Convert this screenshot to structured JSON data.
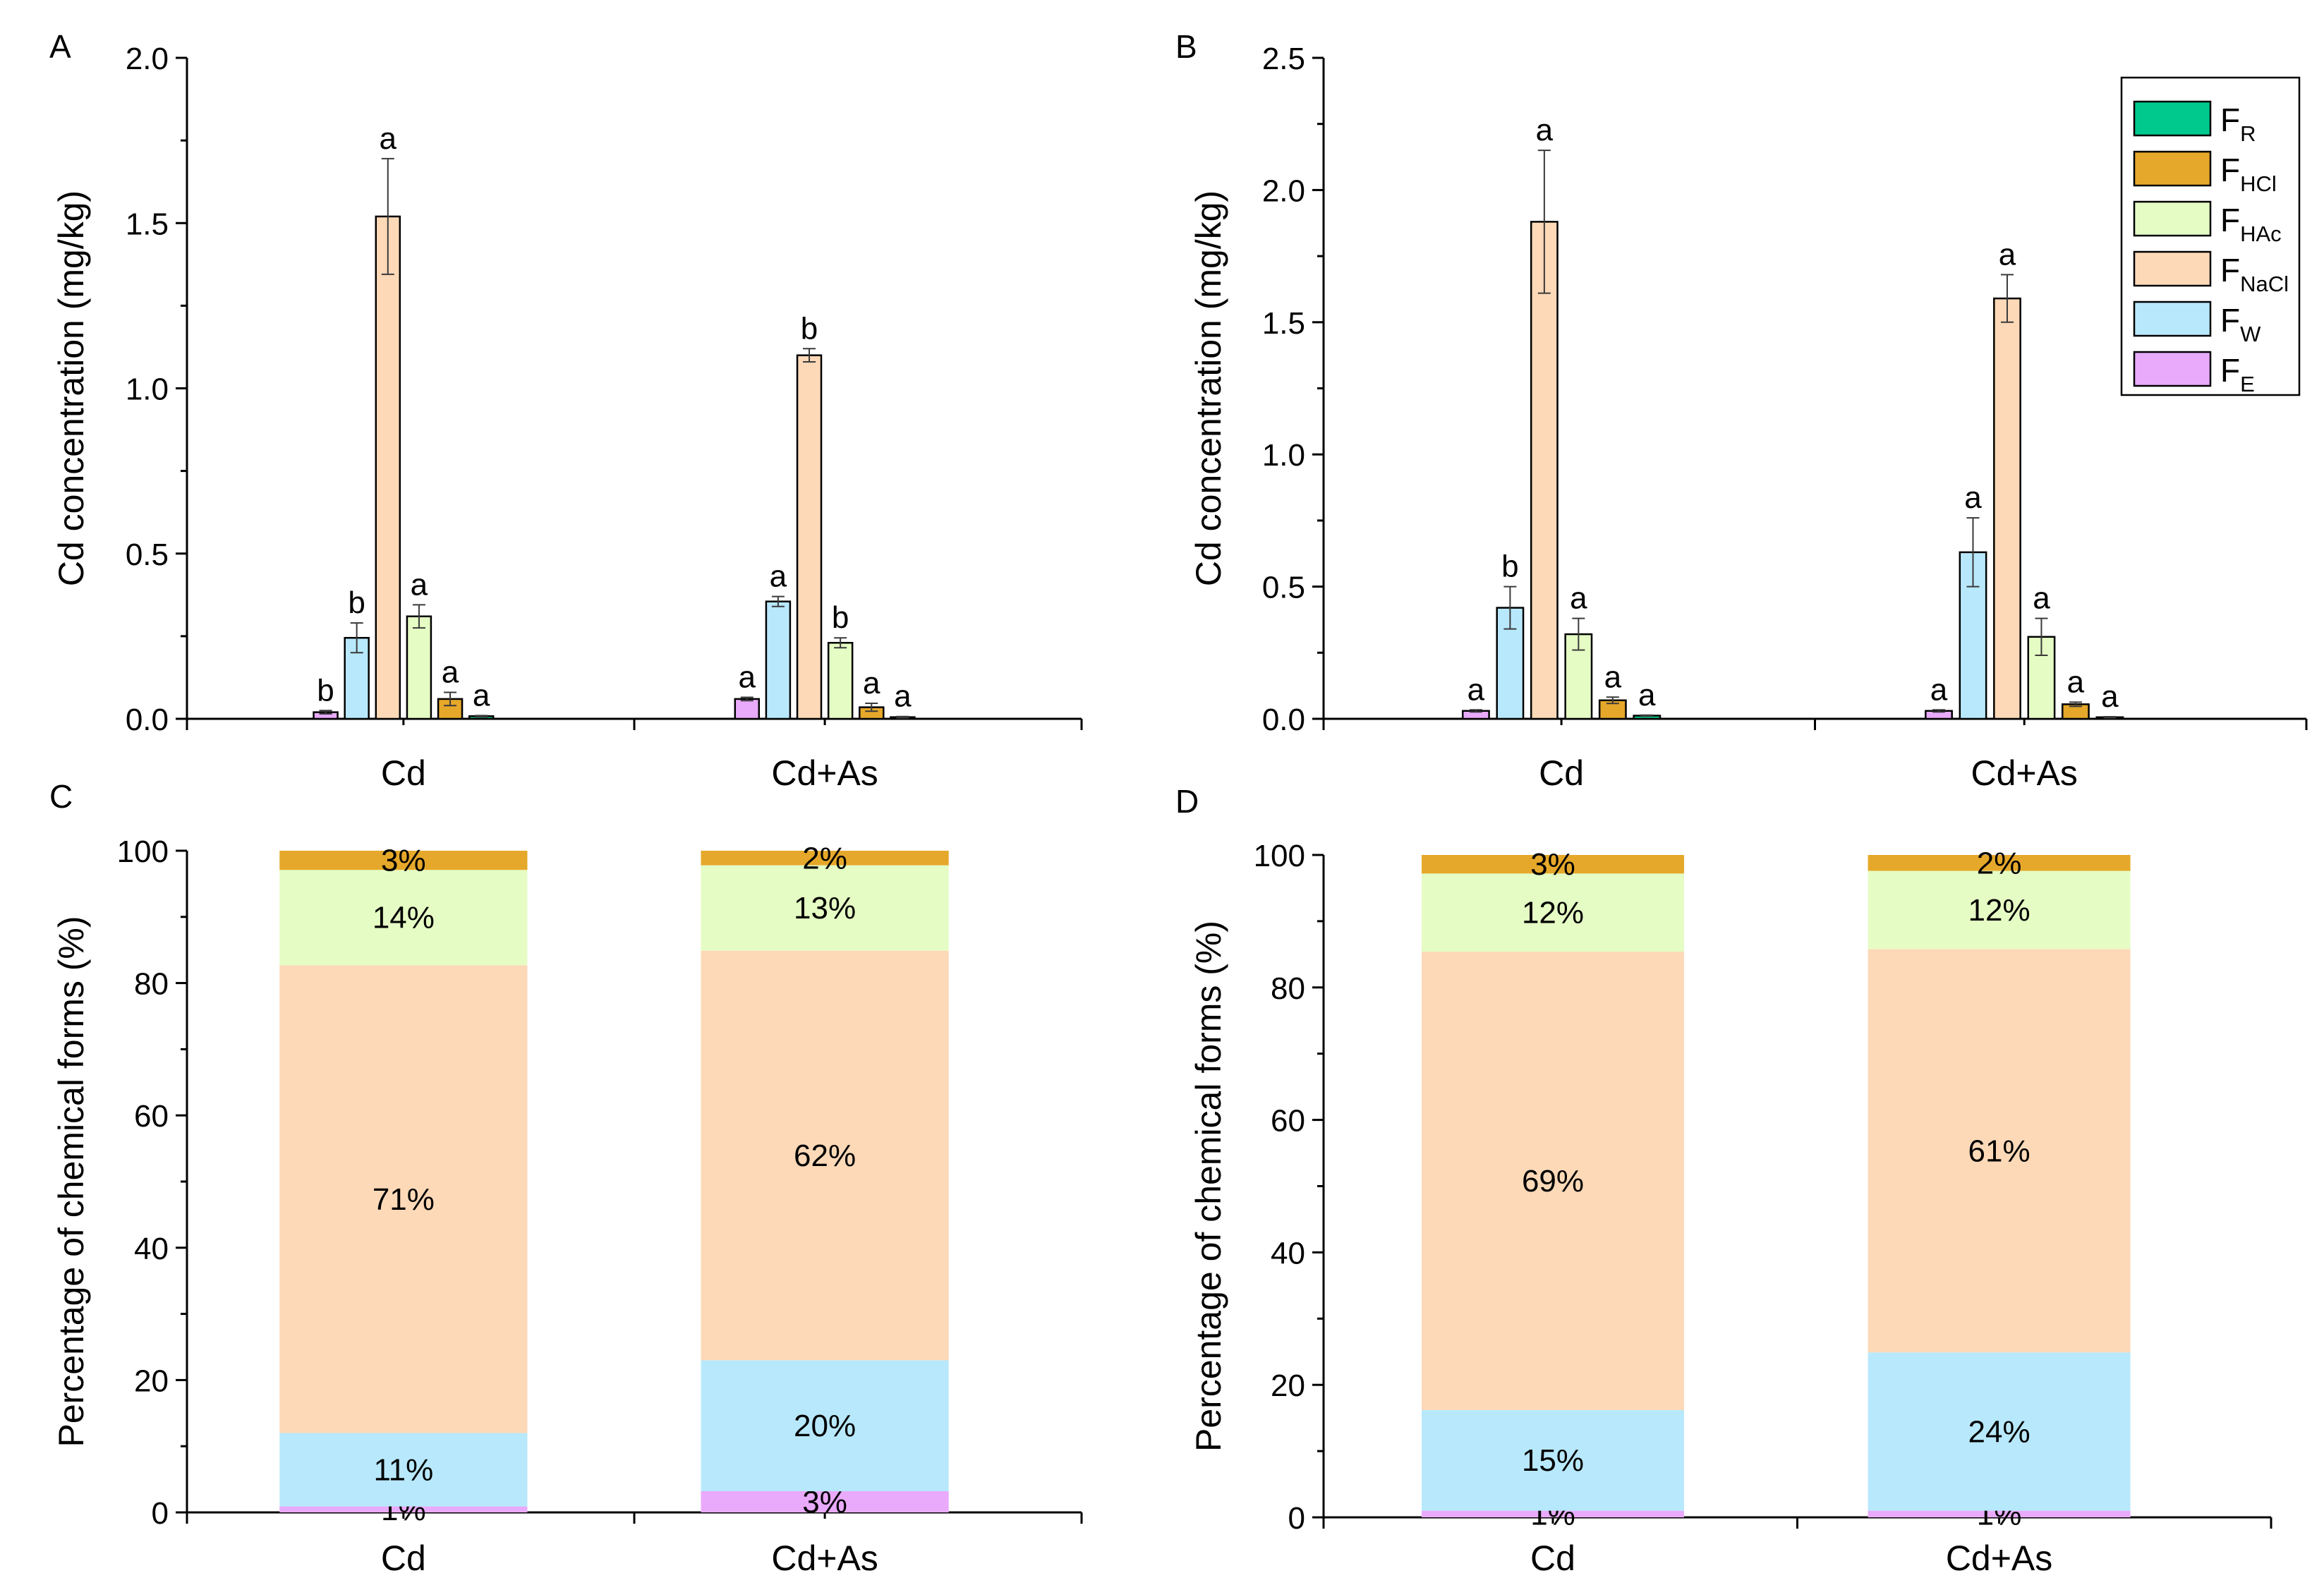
{
  "figure": {
    "colors": {
      "F_R": "#00c98d",
      "F_HCl": "#e6a82a",
      "F_HAc": "#e5fcc4",
      "F_NaCl": "#fdd9b8",
      "F_W": "#b8e8fb",
      "F_E": "#e9aafb",
      "axis": "#000000",
      "error": "#3a3a3a"
    },
    "legend": [
      {
        "key": "F_R",
        "main": "F",
        "sub": "R"
      },
      {
        "key": "F_HCl",
        "main": "F",
        "sub": "HCl"
      },
      {
        "key": "F_HAc",
        "main": "F",
        "sub": "HAc"
      },
      {
        "key": "F_NaCl",
        "main": "F",
        "sub": "NaCl"
      },
      {
        "key": "F_W",
        "main": "F",
        "sub": "W"
      },
      {
        "key": "F_E",
        "main": "F",
        "sub": "E"
      }
    ]
  },
  "chart_data": [
    {
      "panel": "A",
      "type": "bar",
      "ylabel": "Cd concentration (mg/kg)",
      "xlabel": "",
      "categories": [
        "Cd",
        "Cd+As"
      ],
      "ylim": [
        0,
        2.0
      ],
      "yticks": [
        "0.0",
        "0.5",
        "1.0",
        "1.5",
        "2.0"
      ],
      "grid": false,
      "series": [
        {
          "key": "F_E",
          "values": [
            0.02,
            0.06
          ],
          "errors": [
            0.005,
            0.005
          ],
          "letters": [
            "b",
            "a"
          ]
        },
        {
          "key": "F_W",
          "values": [
            0.245,
            0.355
          ],
          "errors": [
            0.045,
            0.015
          ],
          "letters": [
            "b",
            "a"
          ]
        },
        {
          "key": "F_NaCl",
          "values": [
            1.52,
            1.1
          ],
          "errors": [
            0.175,
            0.02
          ],
          "letters": [
            "a",
            "b"
          ]
        },
        {
          "key": "F_HAc",
          "values": [
            0.31,
            0.23
          ],
          "errors": [
            0.035,
            0.015
          ],
          "letters": [
            "a",
            "b"
          ]
        },
        {
          "key": "F_HCl",
          "values": [
            0.06,
            0.035
          ],
          "errors": [
            0.02,
            0.012
          ],
          "letters": [
            "a",
            "a"
          ]
        },
        {
          "key": "F_R",
          "values": [
            0.008,
            0.005
          ],
          "errors": [
            0.002,
            0.002
          ],
          "letters": [
            "a",
            "a"
          ]
        }
      ]
    },
    {
      "panel": "B",
      "type": "bar",
      "ylabel": "Cd concentration (mg/kg)",
      "xlabel": "",
      "categories": [
        "Cd",
        "Cd+As"
      ],
      "ylim": [
        0,
        2.5
      ],
      "yticks": [
        "0.0",
        "0.5",
        "1.0",
        "1.5",
        "2.0",
        "2.5"
      ],
      "grid": false,
      "legend_position": "top-right",
      "series": [
        {
          "key": "F_E",
          "values": [
            0.03,
            0.03
          ],
          "errors": [
            0.004,
            0.004
          ],
          "letters": [
            "a",
            "a"
          ]
        },
        {
          "key": "F_W",
          "values": [
            0.42,
            0.63
          ],
          "errors": [
            0.08,
            0.13
          ],
          "letters": [
            "b",
            "a"
          ]
        },
        {
          "key": "F_NaCl",
          "values": [
            1.88,
            1.59
          ],
          "errors": [
            0.27,
            0.09
          ],
          "letters": [
            "a",
            "a"
          ]
        },
        {
          "key": "F_HAc",
          "values": [
            0.32,
            0.31
          ],
          "errors": [
            0.06,
            0.07
          ],
          "letters": [
            "a",
            "a"
          ]
        },
        {
          "key": "F_HCl",
          "values": [
            0.07,
            0.055
          ],
          "errors": [
            0.012,
            0.008
          ],
          "letters": [
            "a",
            "a"
          ]
        },
        {
          "key": "F_R",
          "values": [
            0.012,
            0.006
          ],
          "errors": [
            0.002,
            0.002
          ],
          "letters": [
            "a",
            "a"
          ]
        }
      ]
    },
    {
      "panel": "C",
      "type": "stacked-bar",
      "ylabel": "Percentage of chemical forms (%)",
      "xlabel": "",
      "categories": [
        "Cd",
        "Cd+As"
      ],
      "ylim": [
        0,
        100
      ],
      "yticks": [
        "0",
        "20",
        "40",
        "60",
        "80",
        "100"
      ],
      "grid": false,
      "series": [
        {
          "key": "F_E",
          "values": [
            0.9,
            3.2
          ],
          "labels": [
            "1%",
            "3%"
          ]
        },
        {
          "key": "F_W",
          "values": [
            11.1,
            19.8
          ],
          "labels": [
            "11%",
            "20%"
          ]
        },
        {
          "key": "F_NaCl",
          "values": [
            70.7,
            61.9
          ],
          "labels": [
            "71%",
            "62%"
          ]
        },
        {
          "key": "F_HAc",
          "values": [
            14.4,
            12.9
          ],
          "labels": [
            "14%",
            "13%"
          ]
        },
        {
          "key": "F_HCl",
          "values": [
            2.9,
            2.2
          ],
          "labels": [
            "3%",
            "2%"
          ]
        },
        {
          "key": "F_R",
          "values": [
            0,
            0
          ],
          "labels": [
            "",
            ""
          ]
        }
      ]
    },
    {
      "panel": "D",
      "type": "stacked-bar",
      "ylabel": "Percentage of chemical forms (%)",
      "xlabel": "",
      "categories": [
        "Cd",
        "Cd+As"
      ],
      "ylim": [
        0,
        100
      ],
      "yticks": [
        "0",
        "20",
        "40",
        "60",
        "80",
        "100"
      ],
      "grid": false,
      "series": [
        {
          "key": "F_E",
          "values": [
            1.0,
            1.0
          ],
          "labels": [
            "1%",
            "1%"
          ]
        },
        {
          "key": "F_W",
          "values": [
            15.2,
            23.9
          ],
          "labels": [
            "15%",
            "24%"
          ]
        },
        {
          "key": "F_NaCl",
          "values": [
            69.2,
            60.9
          ],
          "labels": [
            "69%",
            "61%"
          ]
        },
        {
          "key": "F_HAc",
          "values": [
            11.8,
            11.8
          ],
          "labels": [
            "12%",
            "12%"
          ]
        },
        {
          "key": "F_HCl",
          "values": [
            2.8,
            2.4
          ],
          "labels": [
            "3%",
            "2%"
          ]
        },
        {
          "key": "F_R",
          "values": [
            0,
            0
          ],
          "labels": [
            "",
            ""
          ]
        }
      ]
    }
  ]
}
